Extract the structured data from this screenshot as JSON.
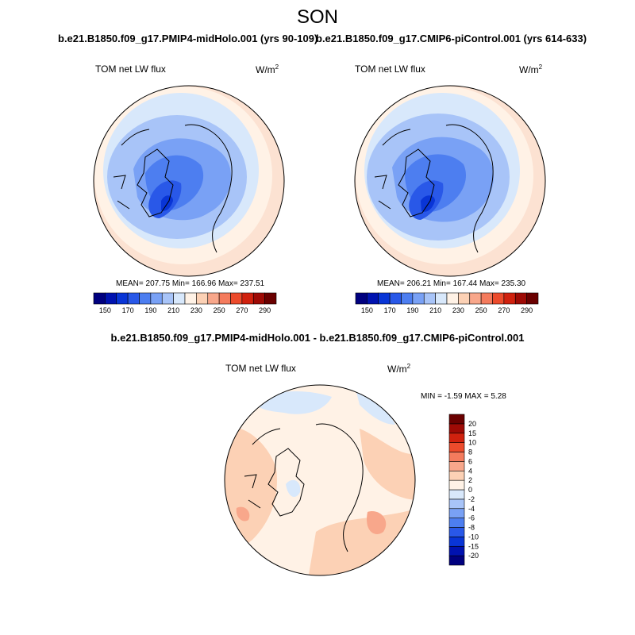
{
  "title": "SON",
  "chart_data": [
    {
      "type": "heatmap",
      "title": "b.e21.B1850.f09_g17.PMIP4-midHolo.001 (yrs 90-109)",
      "variable": "TOM net LW flux",
      "units": "W/m",
      "units_exp": "2",
      "stats": "MEAN= 207.75  Min= 166.96  Max= 237.51",
      "colorbar": {
        "orientation": "horizontal",
        "levels": [
          150,
          160,
          170,
          180,
          190,
          200,
          210,
          220,
          230,
          240,
          250,
          260,
          270,
          280,
          290
        ],
        "tick_labels": [
          "150",
          "170",
          "190",
          "210",
          "230",
          "250",
          "270",
          "290"
        ],
        "colors": [
          "#00007f",
          "#0012b0",
          "#0935d6",
          "#2958e8",
          "#4d7ef0",
          "#79a1f5",
          "#a8c4f8",
          "#d8e8fb",
          "#fff2e6",
          "#fcd1b5",
          "#f8a78b",
          "#f47b5d",
          "#ec4b2c",
          "#d0210e",
          "#9e0a05",
          "#6a0000"
        ]
      }
    },
    {
      "type": "heatmap",
      "title": "b.e21.B1850.f09_g17.CMIP6-piControl.001 (yrs 614-633)",
      "variable": "TOM net LW flux",
      "units": "W/m",
      "units_exp": "2",
      "stats": "MEAN= 206.21  Min= 167.44  Max= 235.30",
      "colorbar": {
        "orientation": "horizontal",
        "levels": [
          150,
          160,
          170,
          180,
          190,
          200,
          210,
          220,
          230,
          240,
          250,
          260,
          270,
          280,
          290
        ],
        "tick_labels": [
          "150",
          "170",
          "190",
          "210",
          "230",
          "250",
          "270",
          "290"
        ],
        "colors": [
          "#00007f",
          "#0012b0",
          "#0935d6",
          "#2958e8",
          "#4d7ef0",
          "#79a1f5",
          "#a8c4f8",
          "#d8e8fb",
          "#fff2e6",
          "#fcd1b5",
          "#f8a78b",
          "#f47b5d",
          "#ec4b2c",
          "#d0210e",
          "#9e0a05",
          "#6a0000"
        ]
      }
    },
    {
      "type": "heatmap",
      "title": "b.e21.B1850.f09_g17.PMIP4-midHolo.001 - b.e21.B1850.f09_g17.CMIP6-piControl.001",
      "variable": "TOM net LW flux",
      "units": "W/m",
      "units_exp": "2",
      "stats": "MIN =  -1.59 MAX =   5.28",
      "colorbar": {
        "orientation": "vertical",
        "levels": [
          -20,
          -15,
          -10,
          -8,
          -6,
          -4,
          -2,
          0,
          2,
          4,
          6,
          8,
          10,
          15,
          20
        ],
        "tick_labels": [
          "-20",
          "-15",
          "-10",
          "-8",
          "-6",
          "-4",
          "-2",
          "0",
          "2",
          "4",
          "6",
          "8",
          "10",
          "15",
          "20"
        ],
        "colors": [
          "#00007f",
          "#0012b0",
          "#0935d6",
          "#2958e8",
          "#4d7ef0",
          "#79a1f5",
          "#a8c4f8",
          "#d8e8fb",
          "#fff2e6",
          "#fcd1b5",
          "#f8a78b",
          "#f47b5d",
          "#ec4b2c",
          "#d0210e",
          "#9e0a05",
          "#6a0000"
        ]
      }
    }
  ]
}
